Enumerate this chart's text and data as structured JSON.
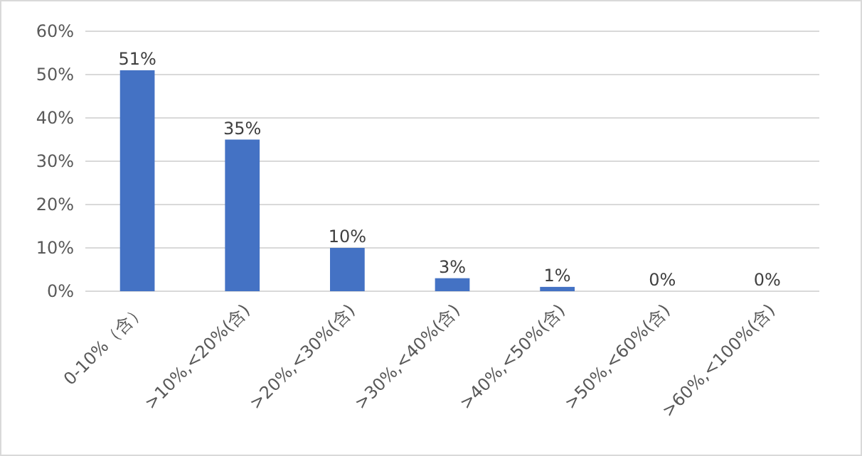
{
  "chart_data": {
    "type": "bar",
    "categories": [
      "0-10%（含）",
      ">10%,<20%(含)",
      ">20%,<30%(含)",
      ">30%,<40%(含)",
      ">40%,<50%(含)",
      ">50%,<60%(含)",
      ">60%,<100%(含)"
    ],
    "values": [
      51,
      35,
      10,
      3,
      1,
      0,
      0
    ],
    "color": "#4472c4",
    "value_labels": [
      "51%",
      "35%",
      "10%",
      "3%",
      "1%",
      "0%",
      "0%"
    ],
    "ylim": [
      0,
      60
    ],
    "yticks": [
      {
        "value": 0,
        "label": "0%"
      },
      {
        "value": 10,
        "label": "10%"
      },
      {
        "value": 20,
        "label": "20%"
      },
      {
        "value": 30,
        "label": "30%"
      },
      {
        "value": 40,
        "label": "40%"
      },
      {
        "value": 50,
        "label": "50%"
      },
      {
        "value": 60,
        "label": "60%"
      }
    ],
    "grid": "y"
  }
}
